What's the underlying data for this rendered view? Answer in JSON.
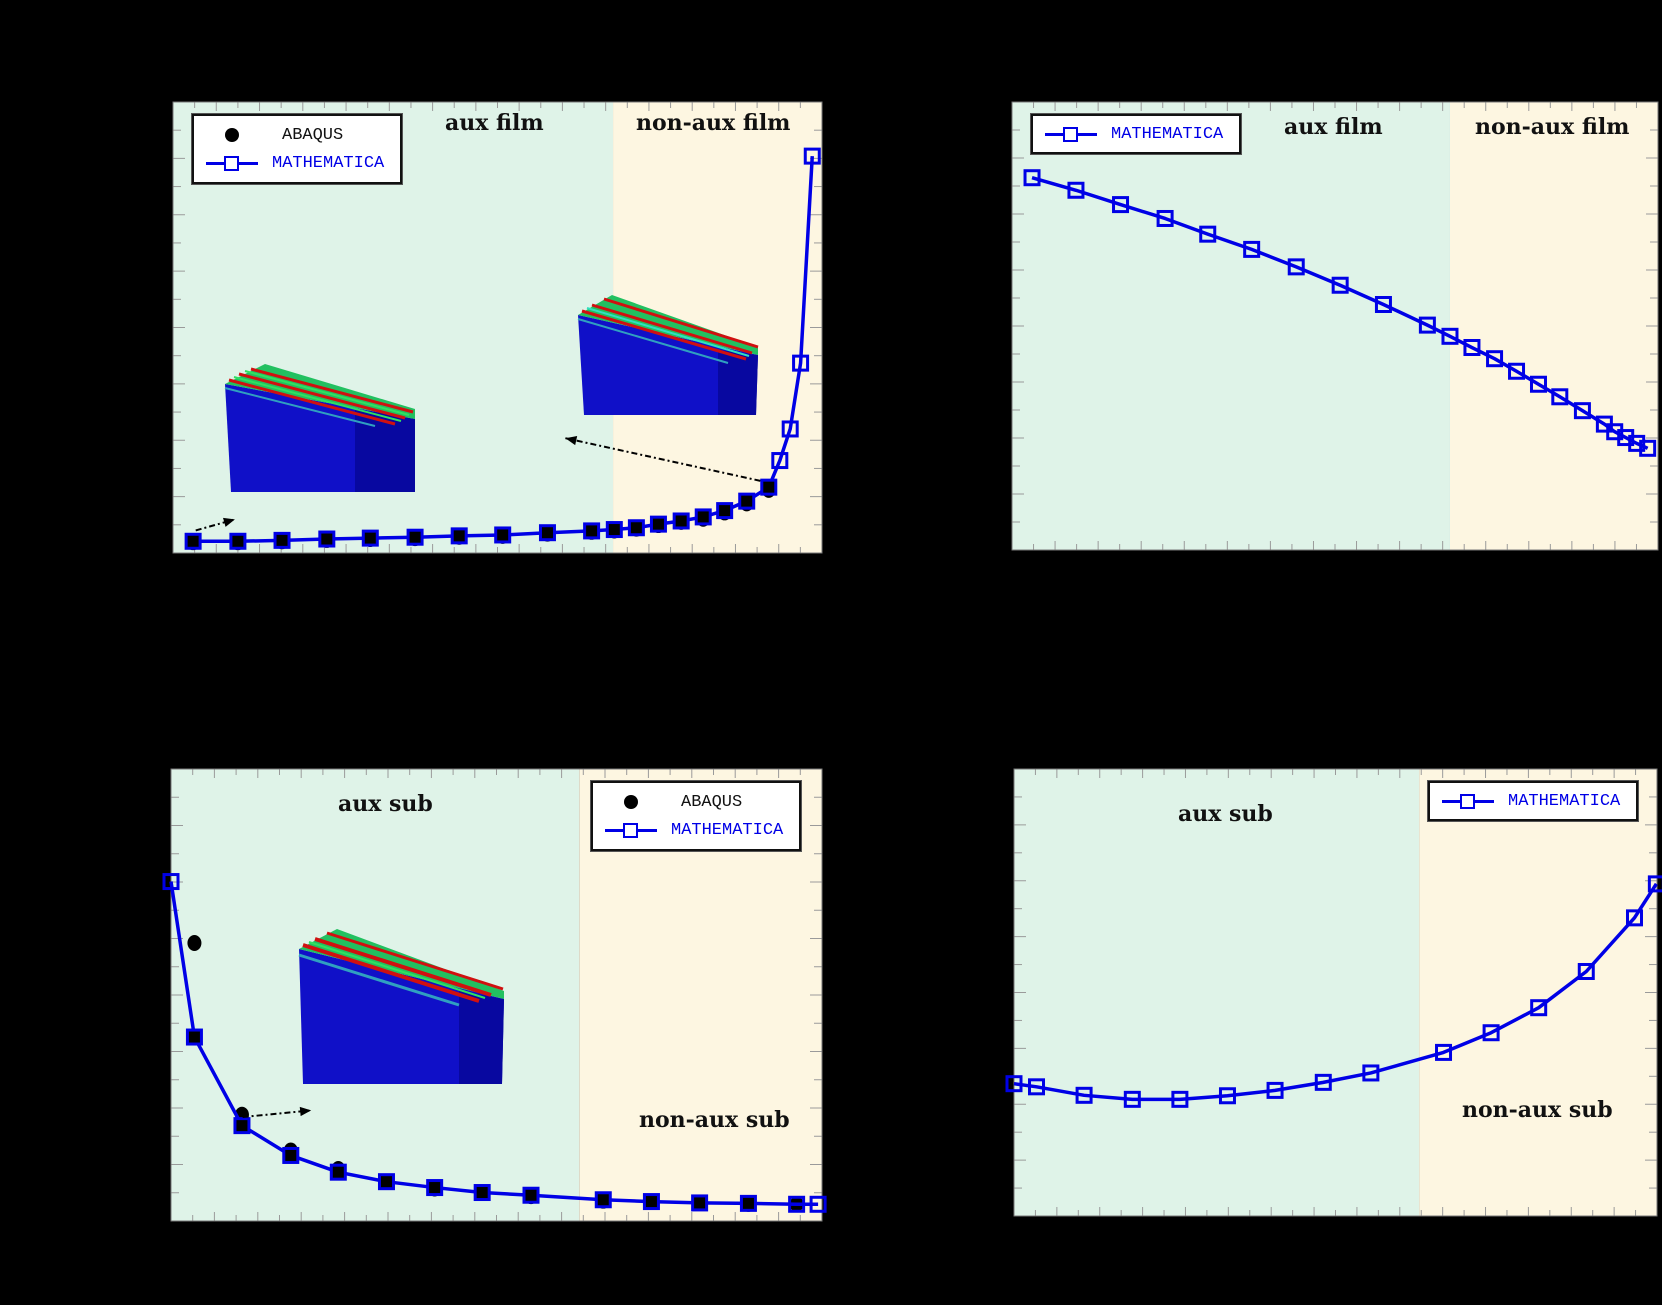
{
  "figure": {
    "background": "#000000",
    "colors": {
      "aux_region": "#dff3e8",
      "nonaux_region": "#fdf6e1",
      "mathematica_line": "#0000e6",
      "abaqus_marker": "#000000",
      "tick": "#9a9a9a"
    }
  },
  "legend_labels": {
    "abaqus": "ABAQUS",
    "mathematica": "MATHEMATICA"
  },
  "insets": {
    "description": "3D finite-element wrinkled film-substrate block (ABAQUS contour: blue base, green/red wrinkle crests)"
  },
  "chart_data": [
    {
      "type": "line",
      "panel": "top-left",
      "title": "",
      "xlabel": "",
      "ylabel": "",
      "note": "Axis tick labels not visible; values are normalized plot fractions (x: 0=left,1=right; y: 0=bottom,1=top)",
      "xlim": [
        0,
        1
      ],
      "ylim": [
        0,
        1
      ],
      "regions": [
        {
          "label": "aux film",
          "from": 0,
          "to": 0.678,
          "color": "#dff3e8"
        },
        {
          "label": "non-aux film",
          "from": 0.678,
          "to": 1,
          "color": "#fdf6e1"
        }
      ],
      "legend": {
        "entries": [
          "ABAQUS",
          "MATHEMATICA"
        ],
        "position": "top-left"
      },
      "series": [
        {
          "name": "MATHEMATICA",
          "style": "line+square",
          "x": [
            0.031,
            0.1,
            0.168,
            0.237,
            0.304,
            0.373,
            0.441,
            0.508,
            0.577,
            0.645,
            0.68,
            0.714,
            0.748,
            0.783,
            0.817,
            0.85,
            0.884,
            0.918,
            0.935,
            0.951,
            0.967,
            0.985
          ],
          "y": [
            0.026,
            0.026,
            0.028,
            0.031,
            0.033,
            0.035,
            0.038,
            0.04,
            0.045,
            0.049,
            0.052,
            0.056,
            0.064,
            0.071,
            0.08,
            0.094,
            0.115,
            0.146,
            0.205,
            0.275,
            0.421,
            0.88
          ]
        },
        {
          "name": "ABAQUS",
          "style": "dot",
          "x": [
            0.031,
            0.1,
            0.168,
            0.237,
            0.304,
            0.373,
            0.441,
            0.508,
            0.577,
            0.645,
            0.68,
            0.714,
            0.748,
            0.783,
            0.817,
            0.85,
            0.884,
            0.918
          ],
          "y": [
            0.024,
            0.024,
            0.026,
            0.029,
            0.031,
            0.033,
            0.036,
            0.038,
            0.043,
            0.047,
            0.05,
            0.054,
            0.062,
            0.069,
            0.076,
            0.09,
            0.11,
            0.14
          ]
        }
      ],
      "annotations": [
        {
          "type": "inset",
          "at": [
            0.08,
            0.13
          ],
          "arrow_from": [
            0.035,
            0.05
          ],
          "desc": "wrinkle mode (aux film)"
        },
        {
          "type": "inset",
          "at": [
            0.62,
            0.31
          ],
          "arrow_from": [
            0.905,
            0.16
          ],
          "desc": "wrinkle mode (non-aux film)"
        }
      ]
    },
    {
      "type": "line",
      "panel": "top-right",
      "title": "",
      "xlabel": "",
      "ylabel": "",
      "xlim": [
        0,
        1
      ],
      "ylim": [
        0,
        1
      ],
      "regions": [
        {
          "label": "aux film",
          "from": 0,
          "to": 0.678,
          "color": "#dff3e8"
        },
        {
          "label": "non-aux film",
          "from": 0.678,
          "to": 1,
          "color": "#fdf6e1"
        }
      ],
      "legend": {
        "entries": [
          "MATHEMATICA"
        ],
        "position": "top-left"
      },
      "series": [
        {
          "name": "MATHEMATICA",
          "style": "line+square",
          "x": [
            0.031,
            0.099,
            0.168,
            0.237,
            0.303,
            0.371,
            0.44,
            0.508,
            0.575,
            0.643,
            0.678,
            0.712,
            0.747,
            0.781,
            0.815,
            0.848,
            0.883,
            0.917,
            0.933,
            0.95,
            0.967,
            0.984
          ],
          "y": [
            0.831,
            0.803,
            0.771,
            0.74,
            0.705,
            0.671,
            0.632,
            0.591,
            0.548,
            0.502,
            0.477,
            0.452,
            0.427,
            0.399,
            0.37,
            0.342,
            0.311,
            0.281,
            0.264,
            0.251,
            0.238,
            0.227
          ]
        }
      ]
    },
    {
      "type": "line",
      "panel": "bottom-left",
      "title": "",
      "xlabel": "",
      "ylabel": "",
      "xlim": [
        0,
        1
      ],
      "ylim": [
        0,
        1
      ],
      "regions": [
        {
          "label": "aux sub",
          "from": 0,
          "to": 0.627,
          "color": "#dff3e8"
        },
        {
          "label": "non-aux sub",
          "from": 0.627,
          "to": 1,
          "color": "#fdf6e1"
        }
      ],
      "legend": {
        "entries": [
          "ABAQUS",
          "MATHEMATICA"
        ],
        "position": "top-right"
      },
      "series": [
        {
          "name": "MATHEMATICA",
          "style": "line+square",
          "x": [
            0.0,
            0.036,
            0.109,
            0.184,
            0.257,
            0.331,
            0.405,
            0.478,
            0.553,
            0.664,
            0.738,
            0.812,
            0.887,
            0.961,
            0.994
          ],
          "y": [
            0.751,
            0.407,
            0.211,
            0.145,
            0.108,
            0.087,
            0.074,
            0.063,
            0.057,
            0.047,
            0.043,
            0.04,
            0.039,
            0.037,
            0.037
          ]
        },
        {
          "name": "ABAQUS",
          "style": "dot",
          "x": [
            0.036,
            0.109,
            0.184,
            0.257,
            0.331,
            0.405,
            0.478,
            0.553,
            0.664,
            0.738,
            0.812,
            0.887,
            0.961
          ],
          "y": [
            0.615,
            0.235,
            0.156,
            0.115,
            0.087,
            0.072,
            0.062,
            0.055,
            0.045,
            0.042,
            0.04,
            0.038,
            0.037
          ]
        }
      ],
      "annotations": [
        {
          "type": "inset",
          "at": [
            0.2,
            0.3
          ],
          "arrow_from": [
            0.11,
            0.23
          ],
          "desc": "wrinkle mode (aux sub)"
        }
      ]
    },
    {
      "type": "line",
      "panel": "bottom-right",
      "title": "",
      "xlabel": "",
      "ylabel": "",
      "xlim": [
        0,
        1
      ],
      "ylim": [
        0,
        1
      ],
      "regions": [
        {
          "label": "aux sub",
          "from": 0,
          "to": 0.63,
          "color": "#dff3e8"
        },
        {
          "label": "non-aux sub",
          "from": 0.63,
          "to": 1,
          "color": "#fdf6e1"
        }
      ],
      "legend": {
        "entries": [
          "MATHEMATICA"
        ],
        "position": "top-right"
      },
      "series": [
        {
          "name": "MATHEMATICA",
          "style": "line+square",
          "x": [
            0.0,
            0.035,
            0.109,
            0.184,
            0.258,
            0.332,
            0.406,
            0.481,
            0.555,
            0.668,
            0.742,
            0.816,
            0.89,
            0.965,
            0.999
          ],
          "y": [
            0.296,
            0.289,
            0.27,
            0.261,
            0.261,
            0.269,
            0.281,
            0.299,
            0.32,
            0.366,
            0.41,
            0.466,
            0.547,
            0.667,
            0.743
          ]
        }
      ]
    }
  ]
}
